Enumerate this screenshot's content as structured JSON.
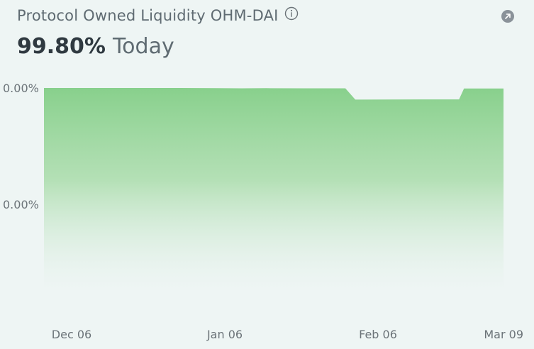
{
  "header": {
    "title": "Protocol Owned Liquidity OHM-DAI",
    "value": "99.80%",
    "value_suffix": "Today"
  },
  "icons": {
    "info": "info-icon",
    "expand": "arrow-up-right-icon"
  },
  "colors": {
    "area_fill": "#88d08c",
    "title": "#5f6b72",
    "value": "#2f3940",
    "expand_bg": "#8a9299"
  },
  "chart_data": {
    "type": "area",
    "title": "Protocol Owned Liquidity OHM-DAI",
    "xlabel": "",
    "ylabel": "",
    "y_tick_labels": [
      "0.00%",
      "0.00%"
    ],
    "x_tick_labels": [
      "Dec 06",
      "Jan 06",
      "Feb 06",
      "Mar 09"
    ],
    "x_tick_dates": [
      "2021-12-06",
      "2022-01-06",
      "2022-02-06",
      "2022-03-09"
    ],
    "ylim": [
      0,
      100
    ],
    "grid": false,
    "legend": "none",
    "series": [
      {
        "x": [
          "2021-12-06",
          "2021-12-20",
          "2022-01-01",
          "2022-01-10",
          "2022-01-15",
          "2022-01-20",
          "2022-01-28",
          "2022-02-05",
          "2022-02-07",
          "2022-02-20",
          "2022-02-28",
          "2022-03-01",
          "2022-03-09"
        ],
        "values": [
          100.0,
          100.0,
          100.0,
          99.95,
          99.85,
          99.9,
          99.85,
          99.85,
          95.0,
          95.1,
          95.1,
          99.75,
          99.8
        ]
      }
    ]
  }
}
